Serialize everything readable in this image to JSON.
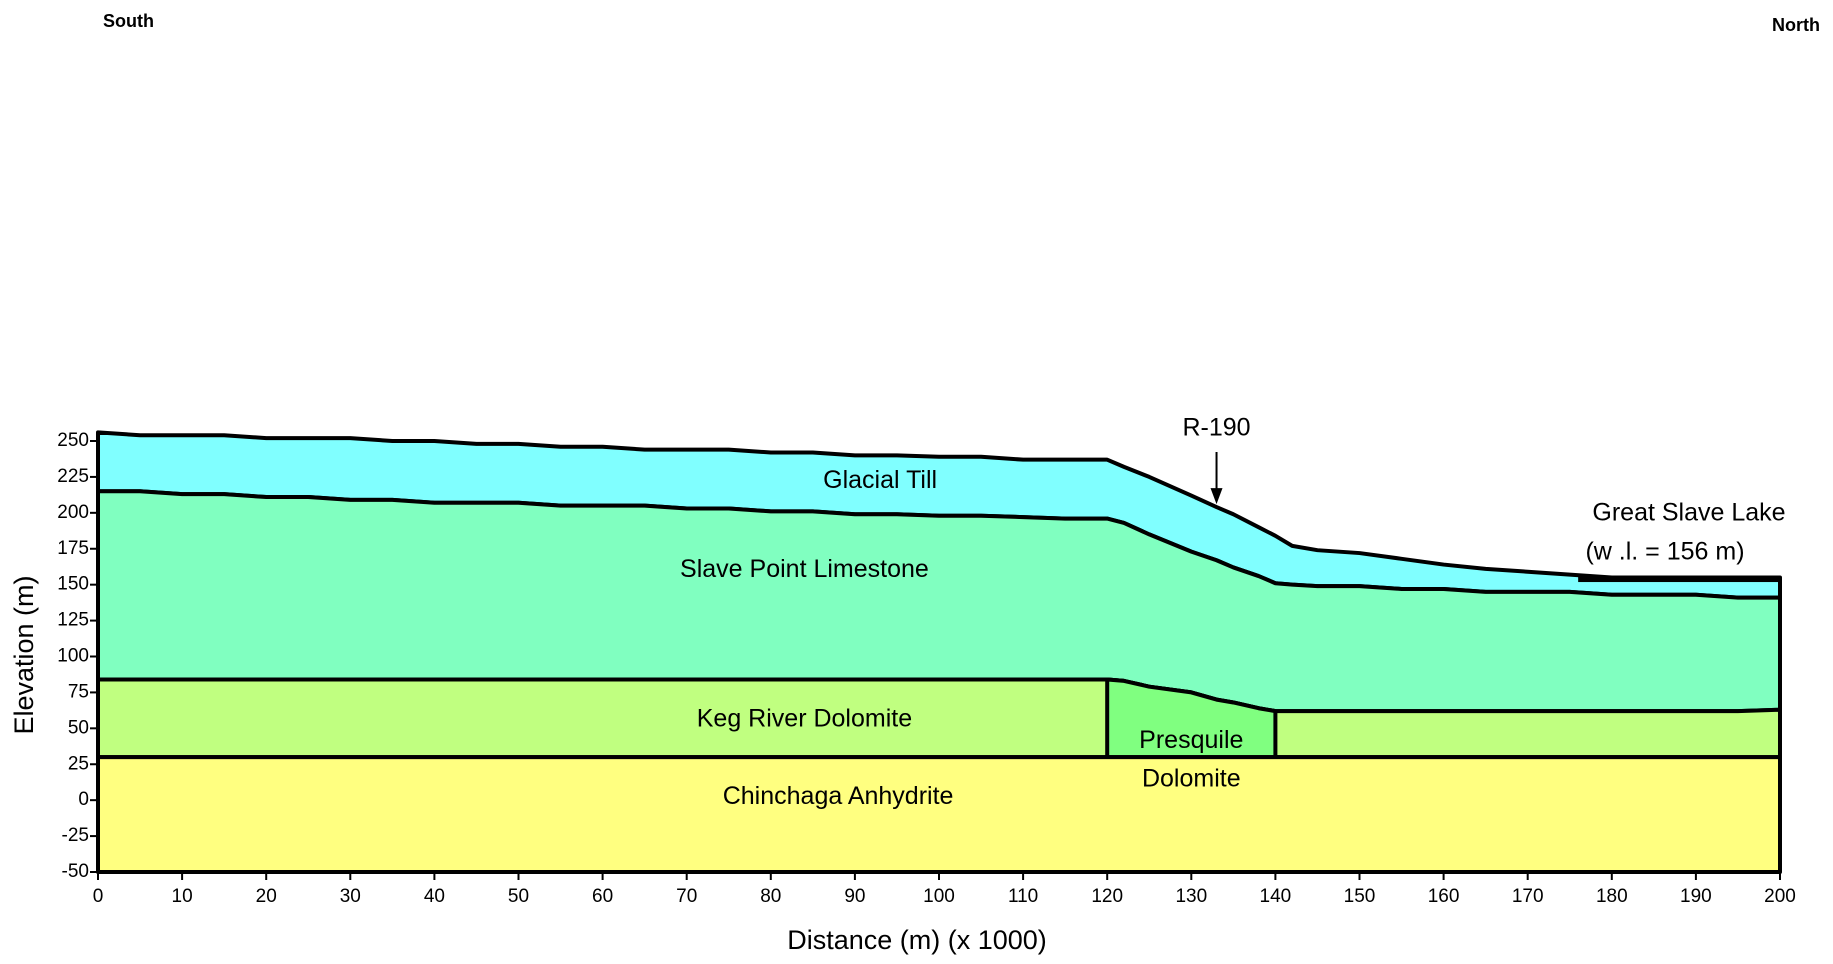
{
  "chart_data": {
    "type": "cross-section",
    "side_labels": [
      "South",
      "North"
    ],
    "xlabel": "Distance (m) (x  1000)",
    "ylabel": "Elevation (m)",
    "xlim": [
      0,
      200
    ],
    "ylim": [
      -50,
      256
    ],
    "xticks": [
      0,
      10,
      20,
      30,
      40,
      50,
      60,
      70,
      80,
      90,
      100,
      110,
      120,
      130,
      140,
      150,
      160,
      170,
      180,
      190,
      200
    ],
    "yticks": [
      -50,
      -25,
      0,
      25,
      50,
      75,
      100,
      125,
      150,
      175,
      200,
      225,
      250
    ],
    "layers": [
      {
        "name": [
          "Glacial Till"
        ],
        "color": "#80ffff",
        "x": [
          0,
          5,
          10,
          15,
          20,
          25,
          30,
          35,
          40,
          45,
          50,
          55,
          60,
          65,
          70,
          75,
          80,
          85,
          90,
          95,
          100,
          105,
          110,
          115,
          120,
          122,
          125,
          130,
          133,
          135,
          138,
          140,
          142,
          145,
          150,
          155,
          160,
          165,
          170,
          175,
          180,
          185,
          190,
          195,
          200
        ],
        "top": [
          256,
          254,
          254,
          254,
          252,
          252,
          252,
          250,
          250,
          248,
          248,
          246,
          246,
          244,
          244,
          244,
          242,
          242,
          240,
          240,
          239,
          239,
          237,
          237,
          237,
          232,
          225,
          212,
          204,
          199,
          190,
          184,
          177,
          174,
          172,
          168,
          164,
          161,
          159,
          157,
          155,
          155,
          155,
          155,
          155
        ],
        "bottom": [
          215,
          215,
          213,
          213,
          211,
          211,
          209,
          209,
          207,
          207,
          207,
          205,
          205,
          205,
          203,
          203,
          201,
          201,
          199,
          199,
          198,
          198,
          197,
          196,
          196,
          193,
          185,
          173,
          167,
          162,
          156,
          151,
          150,
          149,
          149,
          147,
          147,
          145,
          145,
          145,
          143,
          143,
          143,
          141,
          141
        ]
      },
      {
        "name": [
          "Slave Point Limestone"
        ],
        "color": "#80ffc0",
        "x": [
          0,
          5,
          10,
          15,
          20,
          25,
          30,
          35,
          40,
          45,
          50,
          55,
          60,
          65,
          70,
          75,
          80,
          85,
          90,
          95,
          100,
          105,
          110,
          115,
          120,
          122,
          125,
          130,
          133,
          135,
          138,
          140,
          142,
          145,
          150,
          155,
          160,
          165,
          170,
          175,
          180,
          185,
          190,
          195,
          200
        ],
        "top": [
          215,
          215,
          213,
          213,
          211,
          211,
          209,
          209,
          207,
          207,
          207,
          205,
          205,
          205,
          203,
          203,
          201,
          201,
          199,
          199,
          198,
          198,
          197,
          196,
          196,
          193,
          185,
          173,
          167,
          162,
          156,
          151,
          150,
          149,
          149,
          147,
          147,
          145,
          145,
          145,
          143,
          143,
          143,
          141,
          141
        ],
        "bottom": [
          84,
          84,
          84,
          84,
          84,
          84,
          84,
          84,
          84,
          84,
          84,
          84,
          84,
          84,
          84,
          84,
          84,
          84,
          84,
          84,
          84,
          84,
          84,
          84,
          84,
          83,
          79,
          75,
          70,
          68,
          64,
          62,
          62,
          62,
          62,
          62,
          62,
          62,
          62,
          62,
          62,
          62,
          62,
          62,
          63
        ]
      },
      {
        "name": [
          "Keg River Dolomite"
        ],
        "color": "#c0ff80",
        "x": [
          0,
          120,
          122,
          125,
          130,
          133,
          135,
          138,
          140,
          195,
          200
        ],
        "top": [
          84,
          84,
          83,
          79,
          75,
          70,
          68,
          64,
          62,
          62,
          63
        ],
        "bottom": [
          30,
          30,
          30,
          30,
          30,
          30,
          30,
          30,
          30,
          30,
          30
        ]
      },
      {
        "name": [
          "Presquile",
          "Dolomite"
        ],
        "color": "#80ff80",
        "x": [
          120,
          122,
          125,
          130,
          133,
          135,
          138,
          140
        ],
        "top": [
          84,
          83,
          79,
          75,
          70,
          68,
          64,
          62
        ],
        "bottom": [
          30,
          30,
          30,
          30,
          30,
          30,
          30,
          30
        ]
      },
      {
        "name": [
          "Chinchaga Anhydrite"
        ],
        "color": "#ffff80",
        "x": [
          0,
          200
        ],
        "top": [
          30,
          30
        ],
        "bottom": [
          -50,
          -50
        ]
      }
    ],
    "lake": {
      "label": [
        "Great Slave Lake",
        "(w .l. = 156 m)"
      ],
      "level": 156,
      "x": [
        176,
        200
      ],
      "color": "#000000"
    },
    "well": {
      "label": "R-190",
      "x": 133
    }
  }
}
